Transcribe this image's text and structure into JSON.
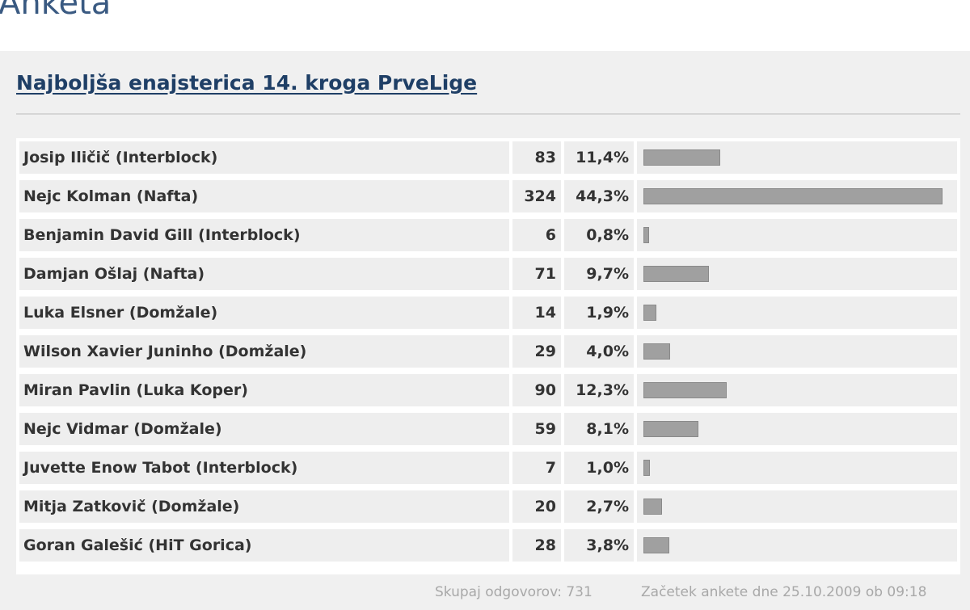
{
  "page_heading": "Anketa",
  "poll": {
    "title": "Najboljša enajsterica 14. kroga PrveLige",
    "results": [
      {
        "name": "Josip Iličič (Interblock)",
        "votes": "83",
        "percent": "11,4%",
        "fraction": 0.114
      },
      {
        "name": "Nejc Kolman (Nafta)",
        "votes": "324",
        "percent": "44,3%",
        "fraction": 0.443
      },
      {
        "name": "Benjamin David Gill (Interblock)",
        "votes": "6",
        "percent": "0,8%",
        "fraction": 0.008
      },
      {
        "name": "Damjan Ošlaj (Nafta)",
        "votes": "71",
        "percent": "9,7%",
        "fraction": 0.097
      },
      {
        "name": "Luka Elsner (Domžale)",
        "votes": "14",
        "percent": "1,9%",
        "fraction": 0.019
      },
      {
        "name": "Wilson Xavier Juninho (Domžale)",
        "votes": "29",
        "percent": "4,0%",
        "fraction": 0.04
      },
      {
        "name": "Miran Pavlin (Luka Koper)",
        "votes": "90",
        "percent": "12,3%",
        "fraction": 0.123
      },
      {
        "name": "Nejc Vidmar (Domžale)",
        "votes": "59",
        "percent": "8,1%",
        "fraction": 0.081
      },
      {
        "name": "Juvette Enow Tabot (Interblock)",
        "votes": "7",
        "percent": "1,0%",
        "fraction": 0.01
      },
      {
        "name": "Mitja Zatkovič (Domžale)",
        "votes": "20",
        "percent": "2,7%",
        "fraction": 0.027
      },
      {
        "name": "Goran Galešić (HiT Gorica)",
        "votes": "28",
        "percent": "3,8%",
        "fraction": 0.038
      }
    ],
    "footer": {
      "total": "Skupaj odgovorov: 731",
      "start": "Začetek ankete dne 25.10.2009 ob 09:18"
    }
  },
  "colors": {
    "heading": "#3a5a82",
    "title_link": "#1f3f66",
    "bar_fill": "#a0a0a0",
    "panel_bg": "#f0f0f0",
    "cell_bg": "#eeeeee"
  }
}
